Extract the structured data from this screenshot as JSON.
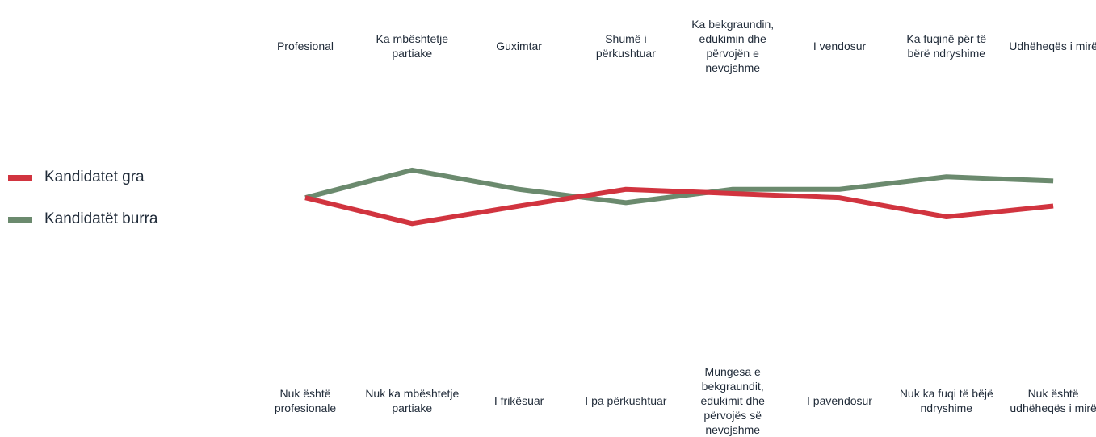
{
  "chart_data": {
    "type": "line",
    "categories": [
      "Profesional",
      "Ka mbështetje partiake",
      "Guximtar",
      "Shumë i përkushtuar",
      "Ka bekgraundin, edukimin dhe përvojën e nevojshme",
      "I vendosur",
      "Ka fuqinë për të bërë ndryshime",
      "Udhëheqës i mirë"
    ],
    "opposite_categories": [
      "Nuk është profesionale",
      "Nuk ka mbështetje partiake",
      "I frikësuar",
      "I pa përkushtuar",
      "Mungesa e bekgraundit, edukimit dhe përvojës së nevojshme",
      "I pavendosur",
      "Nuk ka fuqi të bëjë ndryshime",
      "Nuk është udhëheqës i mirë"
    ],
    "series": [
      {
        "name": "Kandidatet gra",
        "color": "#d1343f",
        "values": [
          3.36,
          3.05,
          3.26,
          3.46,
          3.41,
          3.36,
          3.13,
          3.26
        ]
      },
      {
        "name": "Kandidatët burra",
        "color": "#6b8a6e",
        "values": [
          3.36,
          3.69,
          3.46,
          3.3,
          3.46,
          3.46,
          3.61,
          3.56
        ]
      }
    ],
    "ylim": [
      1,
      5
    ]
  }
}
